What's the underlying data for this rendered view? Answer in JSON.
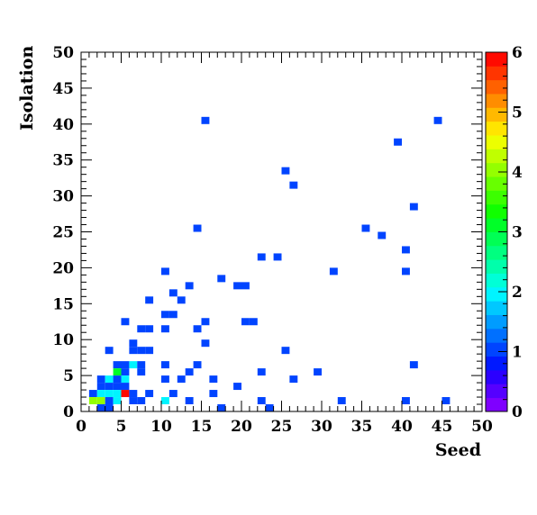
{
  "chart_data": {
    "type": "heatmap",
    "title": "",
    "xlabel": "Seed",
    "ylabel": "Isolation",
    "xlim": [
      0,
      50
    ],
    "ylim": [
      0,
      50
    ],
    "bin_width": 1,
    "x_ticks": [
      "0",
      "5",
      "10",
      "15",
      "20",
      "25",
      "30",
      "35",
      "40",
      "45",
      "50"
    ],
    "y_ticks": [
      "0",
      "5",
      "10",
      "15",
      "20",
      "25",
      "30",
      "35",
      "40",
      "45",
      "50"
    ],
    "z_range": [
      0,
      6
    ],
    "z_ticks": [
      "0",
      "1",
      "2",
      "3",
      "4",
      "5",
      "6"
    ],
    "palette": [
      "#7f00ff",
      "#5500ff",
      "#2b00ff",
      "#0019ff",
      "#0044ff",
      "#0070ff",
      "#009cff",
      "#00c8ff",
      "#00f4ff",
      "#00ffd7",
      "#00ffab",
      "#00ff80",
      "#00ff54",
      "#00ff28",
      "#10ff00",
      "#3cff00",
      "#68ff00",
      "#94ff00",
      "#c0ff00",
      "#ecff00",
      "#ffe500",
      "#ffb900",
      "#ff8d00",
      "#ff6100",
      "#ff3500",
      "#ff0a00"
    ],
    "cells": [
      {
        "x": 15,
        "y": 40,
        "z": 1
      },
      {
        "x": 44,
        "y": 40,
        "z": 1
      },
      {
        "x": 39,
        "y": 37,
        "z": 1
      },
      {
        "x": 25,
        "y": 33,
        "z": 1
      },
      {
        "x": 26,
        "y": 31,
        "z": 1
      },
      {
        "x": 41,
        "y": 28,
        "z": 1
      },
      {
        "x": 14,
        "y": 25,
        "z": 1
      },
      {
        "x": 35,
        "y": 25,
        "z": 1
      },
      {
        "x": 37,
        "y": 24,
        "z": 1
      },
      {
        "x": 40,
        "y": 22,
        "z": 1
      },
      {
        "x": 22,
        "y": 21,
        "z": 1
      },
      {
        "x": 24,
        "y": 21,
        "z": 1
      },
      {
        "x": 10,
        "y": 19,
        "z": 1
      },
      {
        "x": 31,
        "y": 19,
        "z": 1
      },
      {
        "x": 40,
        "y": 19,
        "z": 1
      },
      {
        "x": 17,
        "y": 18,
        "z": 1
      },
      {
        "x": 13,
        "y": 17,
        "z": 1
      },
      {
        "x": 19,
        "y": 17,
        "z": 1
      },
      {
        "x": 20,
        "y": 17,
        "z": 1
      },
      {
        "x": 11,
        "y": 16,
        "z": 1
      },
      {
        "x": 8,
        "y": 15,
        "z": 1
      },
      {
        "x": 12,
        "y": 15,
        "z": 1
      },
      {
        "x": 10,
        "y": 13,
        "z": 1
      },
      {
        "x": 11,
        "y": 13,
        "z": 1
      },
      {
        "x": 5,
        "y": 12,
        "z": 1
      },
      {
        "x": 15,
        "y": 12,
        "z": 1
      },
      {
        "x": 20,
        "y": 12,
        "z": 1
      },
      {
        "x": 21,
        "y": 12,
        "z": 1
      },
      {
        "x": 7,
        "y": 11,
        "z": 1
      },
      {
        "x": 8,
        "y": 11,
        "z": 1
      },
      {
        "x": 10,
        "y": 11,
        "z": 1
      },
      {
        "x": 14,
        "y": 11,
        "z": 1
      },
      {
        "x": 6,
        "y": 9,
        "z": 1
      },
      {
        "x": 15,
        "y": 9,
        "z": 1
      },
      {
        "x": 3,
        "y": 8,
        "z": 1
      },
      {
        "x": 6,
        "y": 8,
        "z": 1
      },
      {
        "x": 7,
        "y": 8,
        "z": 1
      },
      {
        "x": 8,
        "y": 8,
        "z": 1
      },
      {
        "x": 25,
        "y": 8,
        "z": 1
      },
      {
        "x": 4,
        "y": 6,
        "z": 1
      },
      {
        "x": 5,
        "y": 6,
        "z": 1
      },
      {
        "x": 6,
        "y": 6,
        "z": 2
      },
      {
        "x": 7,
        "y": 6,
        "z": 1
      },
      {
        "x": 10,
        "y": 6,
        "z": 1
      },
      {
        "x": 14,
        "y": 6,
        "z": 1
      },
      {
        "x": 41,
        "y": 6,
        "z": 1
      },
      {
        "x": 4,
        "y": 5,
        "z": 3
      },
      {
        "x": 5,
        "y": 5,
        "z": 1
      },
      {
        "x": 7,
        "y": 5,
        "z": 1
      },
      {
        "x": 13,
        "y": 5,
        "z": 1
      },
      {
        "x": 22,
        "y": 5,
        "z": 1
      },
      {
        "x": 29,
        "y": 5,
        "z": 1
      },
      {
        "x": 2,
        "y": 4,
        "z": 1
      },
      {
        "x": 3,
        "y": 4,
        "z": 2
      },
      {
        "x": 4,
        "y": 4,
        "z": 1
      },
      {
        "x": 5,
        "y": 4,
        "z": 2
      },
      {
        "x": 10,
        "y": 4,
        "z": 1
      },
      {
        "x": 12,
        "y": 4,
        "z": 1
      },
      {
        "x": 16,
        "y": 4,
        "z": 1
      },
      {
        "x": 26,
        "y": 4,
        "z": 1
      },
      {
        "x": 2,
        "y": 3,
        "z": 1
      },
      {
        "x": 3,
        "y": 3,
        "z": 1
      },
      {
        "x": 4,
        "y": 3,
        "z": 1
      },
      {
        "x": 5,
        "y": 3,
        "z": 1
      },
      {
        "x": 19,
        "y": 3,
        "z": 1
      },
      {
        "x": 1,
        "y": 2,
        "z": 1
      },
      {
        "x": 2,
        "y": 2,
        "z": 2
      },
      {
        "x": 3,
        "y": 2,
        "z": 2
      },
      {
        "x": 4,
        "y": 2,
        "z": 2
      },
      {
        "x": 5,
        "y": 2,
        "z": 6
      },
      {
        "x": 6,
        "y": 2,
        "z": 1
      },
      {
        "x": 8,
        "y": 2,
        "z": 1
      },
      {
        "x": 11,
        "y": 2,
        "z": 1
      },
      {
        "x": 16,
        "y": 2,
        "z": 1
      },
      {
        "x": 1,
        "y": 1,
        "z": 4
      },
      {
        "x": 2,
        "y": 1,
        "z": 4
      },
      {
        "x": 3,
        "y": 1,
        "z": 1
      },
      {
        "x": 4,
        "y": 1,
        "z": 2
      },
      {
        "x": 6,
        "y": 1,
        "z": 1
      },
      {
        "x": 7,
        "y": 1,
        "z": 1
      },
      {
        "x": 10,
        "y": 1,
        "z": 2
      },
      {
        "x": 13,
        "y": 1,
        "z": 1
      },
      {
        "x": 22,
        "y": 1,
        "z": 1
      },
      {
        "x": 32,
        "y": 1,
        "z": 1
      },
      {
        "x": 40,
        "y": 1,
        "z": 1
      },
      {
        "x": 45,
        "y": 1,
        "z": 1
      },
      {
        "x": 2,
        "y": 0,
        "z": 1
      },
      {
        "x": 3,
        "y": 0,
        "z": 1
      },
      {
        "x": 17,
        "y": 0,
        "z": 1
      },
      {
        "x": 23,
        "y": 0,
        "z": 1
      }
    ]
  }
}
